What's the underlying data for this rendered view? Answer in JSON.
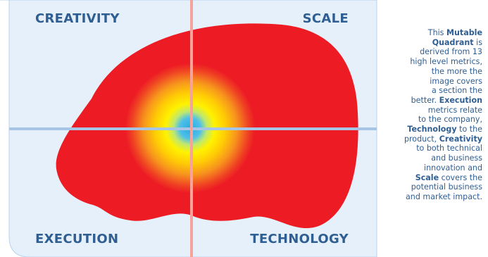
{
  "quadrants": {
    "top_left": "CREATIVITY",
    "top_right": "SCALE",
    "bottom_left": "EXECUTION",
    "bottom_right": "TECHNOLOGY"
  },
  "description": {
    "line1_a": "This ",
    "line1_b": "Mutable",
    "line2_a": "Quadrant",
    "line2_b": " is",
    "line3": "derived from 13",
    "line4": "high level metrics,",
    "line5": "the more the",
    "line6": "image covers",
    "line7": "a section the",
    "line8_a": "better. ",
    "line8_b": "Execution",
    "line9": "metrics relate",
    "line10": "to the company,",
    "line11_a": "Technology",
    "line11_b": " to the",
    "line12_a": "product, ",
    "line12_b": "Creativity",
    "line13": "to both technical",
    "line14": "and business",
    "line15": "innovation and",
    "line16_a": "Scale",
    "line16_b": " covers the",
    "line17": "potential business",
    "line18": "and market impact."
  },
  "colors": {
    "panel_bg": "#e6f0fa",
    "panel_border": "#b8d2ec",
    "axis_vertical": "#f6a39b",
    "axis_horizontal": "#a7c4e4",
    "label_text": "#2f5e93",
    "blob_red": "#ed1c24",
    "heat_yellow": "#fff200",
    "heat_blue": "#29aae1"
  }
}
